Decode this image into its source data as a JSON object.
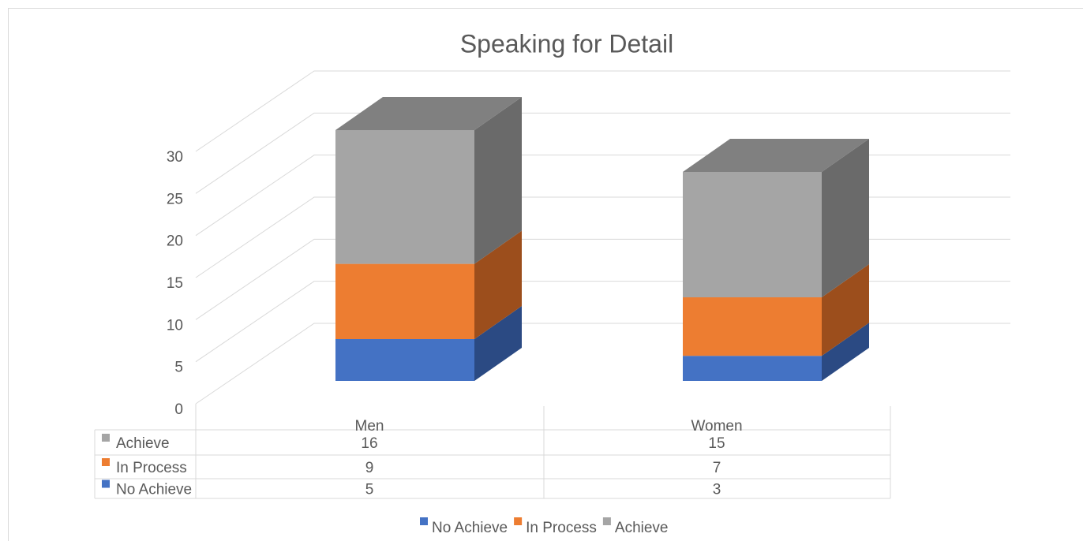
{
  "chart_data": {
    "type": "bar3d_stacked",
    "title": "Speaking for Detail",
    "categories": [
      "Men",
      "Women"
    ],
    "series": [
      {
        "name": "No Achieve",
        "color": "#4472c4",
        "side": "#2b4a83",
        "top": "#5a82cc",
        "values": [
          5,
          3
        ]
      },
      {
        "name": "In Process",
        "color": "#ed7d31",
        "side": "#9c4e1c",
        "top": "#f0914f",
        "values": [
          9,
          7
        ]
      },
      {
        "name": "Achieve",
        "color": "#a5a5a5",
        "side": "#6a6a6a",
        "top": "#808080",
        "values": [
          16,
          15
        ]
      }
    ],
    "ylim": [
      0,
      30
    ],
    "yticks": [
      0,
      5,
      10,
      15,
      20,
      25,
      30
    ],
    "grid": true,
    "data_table": true,
    "legend": "bottom"
  }
}
